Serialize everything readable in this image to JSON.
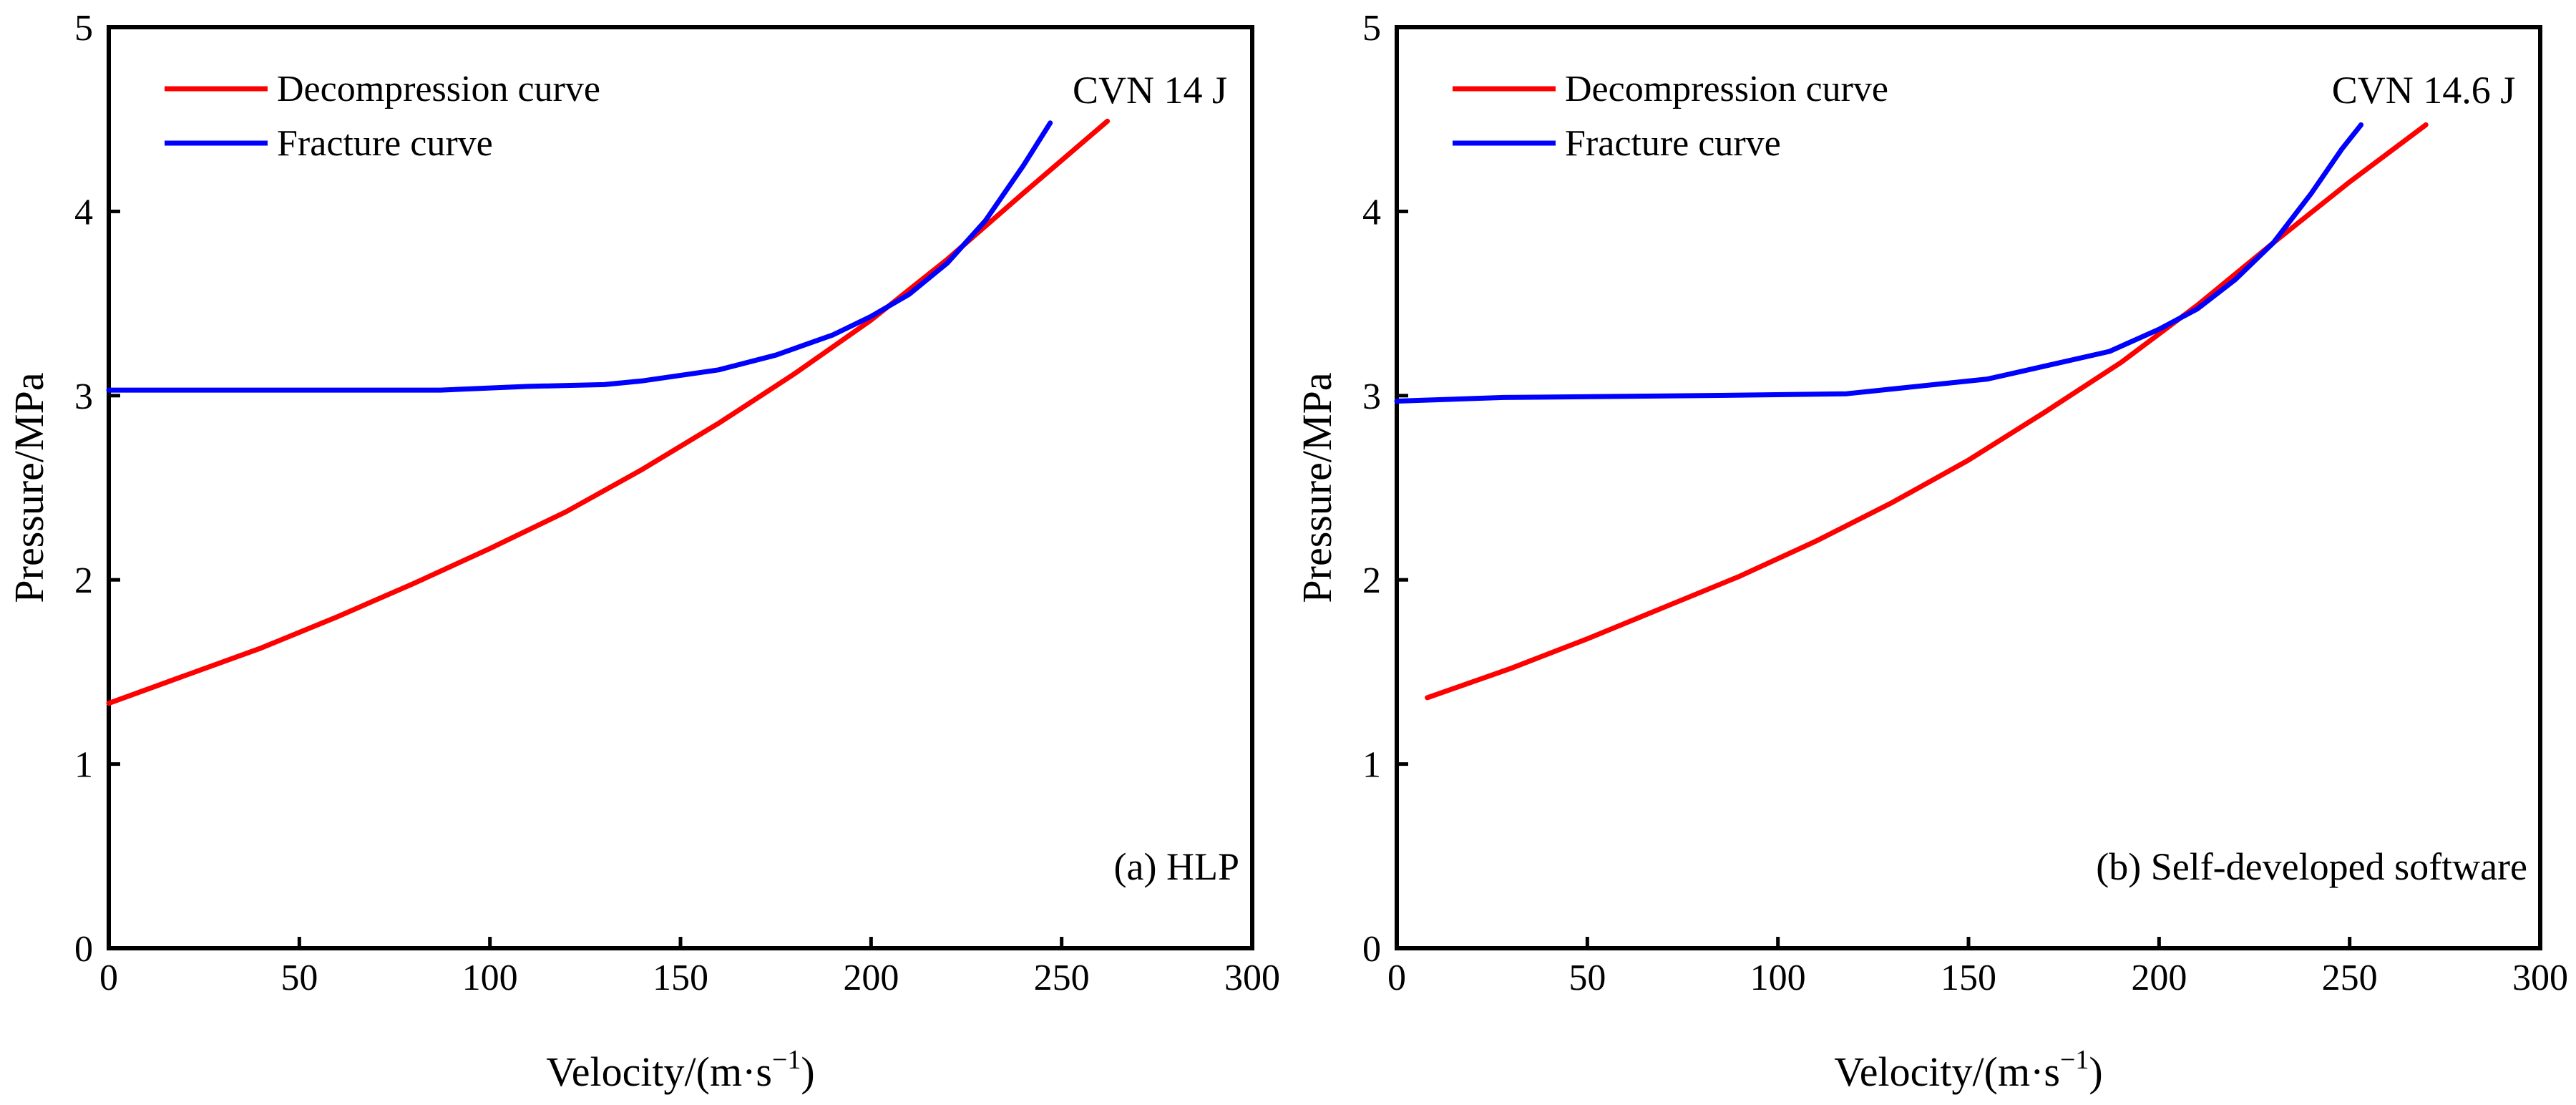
{
  "chart_data": [
    {
      "type": "line",
      "panel_label": "(a) HLP",
      "annotation": "CVN 14 J",
      "xlabel": "Velocity/(m·s",
      "xlabel_sup": "−1",
      "xlabel_end": ")",
      "ylabel": "Pressure/MPa",
      "xlim": [
        0,
        300
      ],
      "ylim": [
        0,
        5
      ],
      "xticks": [
        "0",
        "50",
        "100",
        "150",
        "200",
        "250",
        "300"
      ],
      "yticks": [
        "0",
        "1",
        "2",
        "3",
        "4",
        "5"
      ],
      "grid": false,
      "legend_position": "top-left",
      "series": [
        {
          "name": "Decompression curve",
          "color": "#ff0000",
          "points": [
            [
              0,
              1.33
            ],
            [
              20,
              1.48
            ],
            [
              40,
              1.63
            ],
            [
              60,
              1.8
            ],
            [
              80,
              1.98
            ],
            [
              100,
              2.17
            ],
            [
              120,
              2.37
            ],
            [
              140,
              2.6
            ],
            [
              160,
              2.85
            ],
            [
              180,
              3.12
            ],
            [
              200,
              3.41
            ],
            [
              220,
              3.74
            ],
            [
              240,
              4.1
            ],
            [
              262,
              4.49
            ]
          ]
        },
        {
          "name": "Fracture curve",
          "color": "#0000ff",
          "points": [
            [
              0,
              3.03
            ],
            [
              50,
              3.03
            ],
            [
              87,
              3.03
            ],
            [
              110,
              3.05
            ],
            [
              130,
              3.06
            ],
            [
              140,
              3.08
            ],
            [
              160,
              3.14
            ],
            [
              175,
              3.22
            ],
            [
              190,
              3.33
            ],
            [
              200,
              3.43
            ],
            [
              210,
              3.55
            ],
            [
              220,
              3.72
            ],
            [
              230,
              3.95
            ],
            [
              240,
              4.25
            ],
            [
              247,
              4.48
            ]
          ]
        }
      ]
    },
    {
      "type": "line",
      "panel_label": "(b) Self-developed software",
      "annotation": "CVN 14.6 J",
      "xlabel": "Velocity/(m·s",
      "xlabel_sup": "−1",
      "xlabel_end": ")",
      "ylabel": "Pressure/MPa",
      "xlim": [
        0,
        300
      ],
      "ylim": [
        0,
        5
      ],
      "xticks": [
        "0",
        "50",
        "100",
        "150",
        "200",
        "250",
        "300"
      ],
      "yticks": [
        "0",
        "1",
        "2",
        "3",
        "4",
        "5"
      ],
      "grid": false,
      "legend_position": "top-left",
      "series": [
        {
          "name": "Decompression curve",
          "color": "#ff0000",
          "points": [
            [
              8,
              1.36
            ],
            [
              30,
              1.52
            ],
            [
              50,
              1.68
            ],
            [
              70,
              1.85
            ],
            [
              90,
              2.02
            ],
            [
              110,
              2.21
            ],
            [
              130,
              2.42
            ],
            [
              150,
              2.65
            ],
            [
              170,
              2.91
            ],
            [
              190,
              3.18
            ],
            [
              210,
              3.49
            ],
            [
              230,
              3.83
            ],
            [
              250,
              4.16
            ],
            [
              270,
              4.47
            ]
          ]
        },
        {
          "name": "Fracture curve",
          "color": "#0000ff",
          "points": [
            [
              0,
              2.97
            ],
            [
              28,
              2.99
            ],
            [
              80,
              3.0
            ],
            [
              118,
              3.01
            ],
            [
              155,
              3.09
            ],
            [
              170,
              3.16
            ],
            [
              187,
              3.24
            ],
            [
              200,
              3.36
            ],
            [
              210,
              3.47
            ],
            [
              220,
              3.63
            ],
            [
              230,
              3.83
            ],
            [
              240,
              4.1
            ],
            [
              248,
              4.34
            ],
            [
              253,
              4.47
            ]
          ]
        }
      ]
    }
  ]
}
